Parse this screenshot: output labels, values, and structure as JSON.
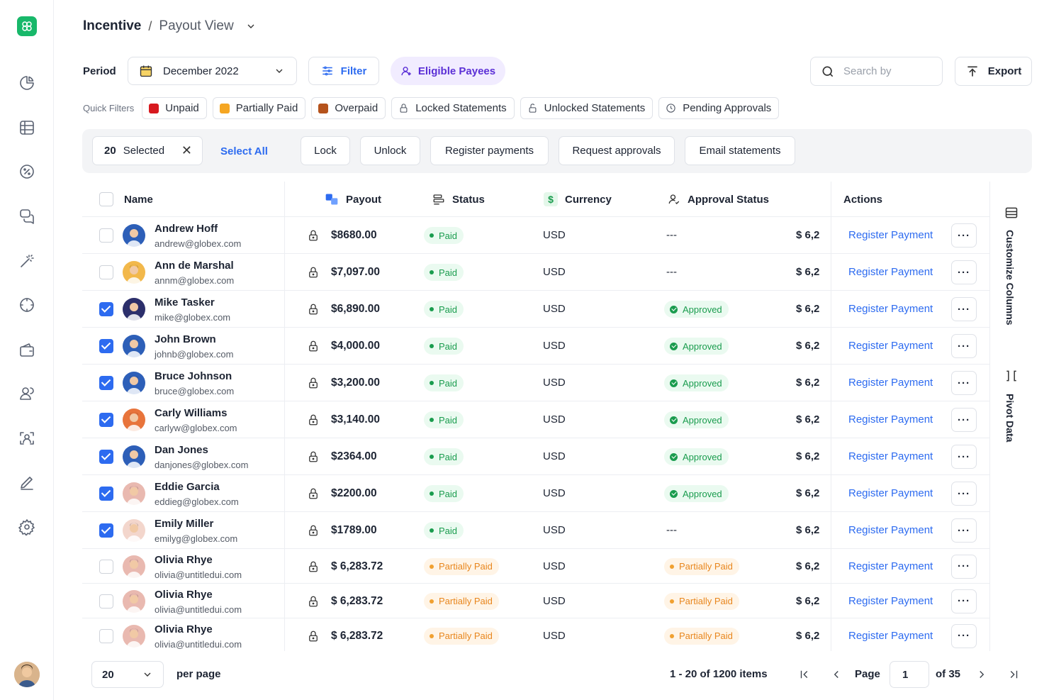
{
  "header": {
    "title": "Incentive",
    "separator": "/",
    "view": "Payout View"
  },
  "toolbar": {
    "period_label": "Period",
    "period_value": "December 2022",
    "filter_label": "Filter",
    "eligible_label": "Eligible Payees",
    "search_placeholder": "Search by",
    "export_label": "Export"
  },
  "quick_filters": {
    "label": "Quick Filters",
    "items": [
      {
        "label": "Unpaid",
        "color": "#d7191f"
      },
      {
        "label": "Partially Paid",
        "color": "#f5a623"
      },
      {
        "label": "Overpaid",
        "color": "#b5531c"
      },
      {
        "label": "Locked Statements"
      },
      {
        "label": "Unlocked Statements"
      },
      {
        "label": "Pending Approvals"
      }
    ]
  },
  "actions": {
    "selected_count": "20",
    "selected_text": "Selected",
    "select_all": "Select All",
    "lock": "Lock",
    "unlock": "Unlock",
    "register_payments": "Register payments",
    "request_approvals": "Request approvals",
    "email_statements": "Email statements"
  },
  "table": {
    "headers": {
      "name": "Name",
      "payout": "Payout",
      "status": "Status",
      "currency": "Currency",
      "approval": "Approval Status",
      "actions": "Actions"
    },
    "rows": [
      {
        "checked": false,
        "name": "Andrew Hoff",
        "email": "andrew@globex.com",
        "payout": "$8680.00",
        "status": "Paid",
        "currency": "USD",
        "approval": "---",
        "amount": "$ 6,2",
        "action": "Register Payment",
        "avatar_color": "#2d5fb8"
      },
      {
        "checked": false,
        "name": "Ann de Marshal",
        "email": "annm@globex.com",
        "payout": "$7,097.00",
        "status": "Paid",
        "currency": "USD",
        "approval": "---",
        "amount": "$ 6,2",
        "action": "Register Payment",
        "avatar_color": "#f2b84b"
      },
      {
        "checked": true,
        "name": "Mike Tasker",
        "email": "mike@globex.com",
        "payout": "$6,890.00",
        "status": "Paid",
        "currency": "USD",
        "approval": "Approved",
        "amount": "$ 6,2",
        "action": "Register Payment",
        "avatar_color": "#2c2f6b"
      },
      {
        "checked": true,
        "name": "John Brown",
        "email": "johnb@globex.com",
        "payout": "$4,000.00",
        "status": "Paid",
        "currency": "USD",
        "approval": "Approved",
        "amount": "$ 6,2",
        "action": "Register Payment",
        "avatar_color": "#2d5fb8"
      },
      {
        "checked": true,
        "name": "Bruce Johnson",
        "email": "bruce@globex.com",
        "payout": "$3,200.00",
        "status": "Paid",
        "currency": "USD",
        "approval": "Approved",
        "amount": "$ 6,2",
        "action": "Register Payment",
        "avatar_color": "#2d5fb8"
      },
      {
        "checked": true,
        "name": "Carly Williams",
        "email": "carlyw@globex.com",
        "payout": "$3,140.00",
        "status": "Paid",
        "currency": "USD",
        "approval": "Approved",
        "amount": "$ 6,2",
        "action": "Register Payment",
        "avatar_color": "#e8743b"
      },
      {
        "checked": true,
        "name": "Dan Jones",
        "email": "danjones@globex.com",
        "payout": "$2364.00",
        "status": "Paid",
        "currency": "USD",
        "approval": "Approved",
        "amount": "$ 6,2",
        "action": "Register Payment",
        "avatar_color": "#2d5fb8"
      },
      {
        "checked": true,
        "name": "Eddie Garcia",
        "email": "eddieg@globex.com",
        "payout": "$2200.00",
        "status": "Paid",
        "currency": "USD",
        "approval": "Approved",
        "amount": "$ 6,2",
        "action": "Register Payment",
        "avatar_color": "#e9b9b0"
      },
      {
        "checked": true,
        "name": "Emily Miller",
        "email": "emilyg@globex.com",
        "payout": "$1789.00",
        "status": "Paid",
        "currency": "USD",
        "approval": "---",
        "amount": "$ 6,2",
        "action": "Register Payment",
        "avatar_color": "#f3d6cc"
      },
      {
        "checked": false,
        "name": "Olivia Rhye",
        "email": "olivia@untitledui.com",
        "payout": "$ 6,283.72",
        "status": "Partially Paid",
        "currency": "USD",
        "approval": "Partially Paid",
        "amount": "$ 6,2",
        "action": "Register Payment",
        "avatar_color": "#e9b9b0"
      },
      {
        "checked": false,
        "name": "Olivia Rhye",
        "email": "olivia@untitledui.com",
        "payout": "$ 6,283.72",
        "status": "Partially Paid",
        "currency": "USD",
        "approval": "Partially Paid",
        "amount": "$ 6,2",
        "action": "Register Payment",
        "avatar_color": "#e9b9b0"
      },
      {
        "checked": false,
        "name": "Olivia Rhye",
        "email": "olivia@untitledui.com",
        "payout": "$ 6,283.72",
        "status": "Partially Paid",
        "currency": "USD",
        "approval": "Partially Paid",
        "amount": "$ 6,2",
        "action": "Register Payment",
        "avatar_color": "#e9b9b0"
      }
    ]
  },
  "side_panel": {
    "customize": "Customize Columns",
    "pivot": "Pivot Data"
  },
  "pagination": {
    "per_page_value": "20",
    "per_page_label": "per page",
    "items_text": "1 - 20 of 1200 items",
    "page_label": "Page",
    "page_value": "1",
    "of_text": "of 35"
  },
  "sidebar": {
    "icons": [
      "pie-chart-icon",
      "grid-icon",
      "percent-icon",
      "chat-icon",
      "magic-wand-icon",
      "circle-icon",
      "wallet-icon",
      "users-icon",
      "user-scan-icon",
      "pen-icon",
      "settings-icon"
    ]
  }
}
